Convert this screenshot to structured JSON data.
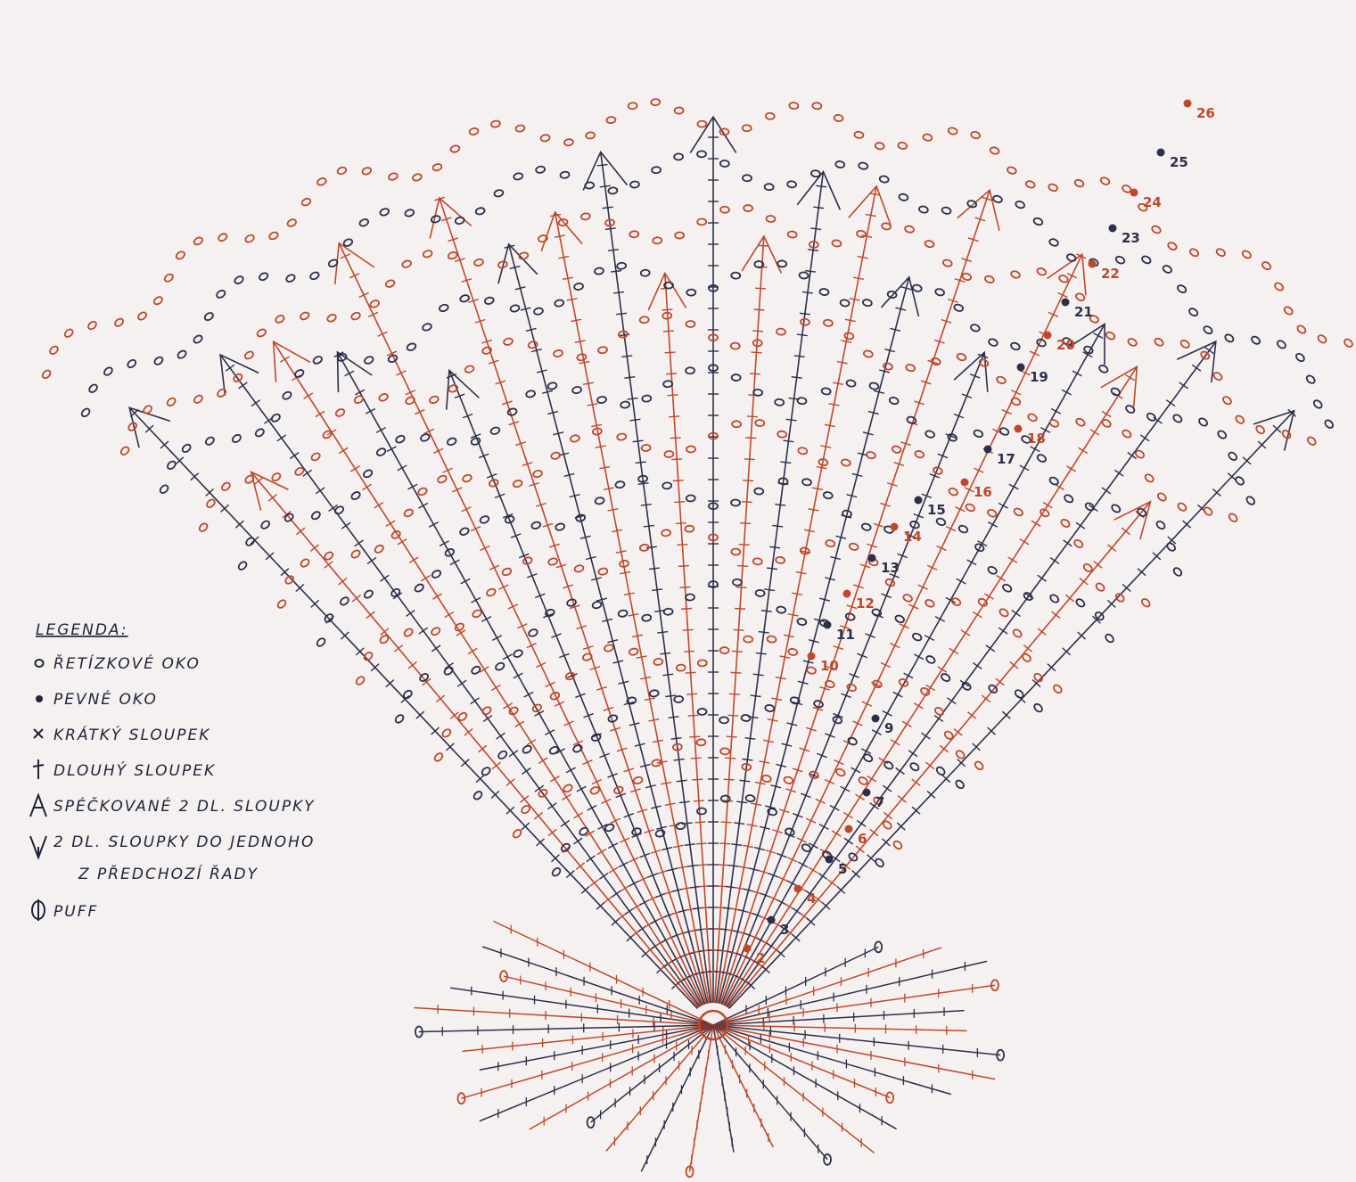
{
  "legend": {
    "title": "LEGENDA:",
    "items": [
      "ŘETÍZKOVÉ OKO",
      "PEVNÉ OKO",
      "KRÁTKÝ SLOUPEK",
      "DLOUHÝ SLOUPEK",
      "SPÉČKOVANÉ 2 DL. SLOUPKY",
      "2 DL. SLOUPKY DO JEDNOHO",
      "Z PŘEDCHOZÍ ŘADY",
      "PUFF"
    ]
  },
  "row_numbers": [
    "2",
    "3",
    "4",
    "5",
    "6",
    "7",
    "9",
    "10",
    "11",
    "12",
    "13",
    "14",
    "15",
    "16",
    "17",
    "18",
    "19",
    "20",
    "21",
    "22",
    "23",
    "24",
    "25",
    "26"
  ]
}
